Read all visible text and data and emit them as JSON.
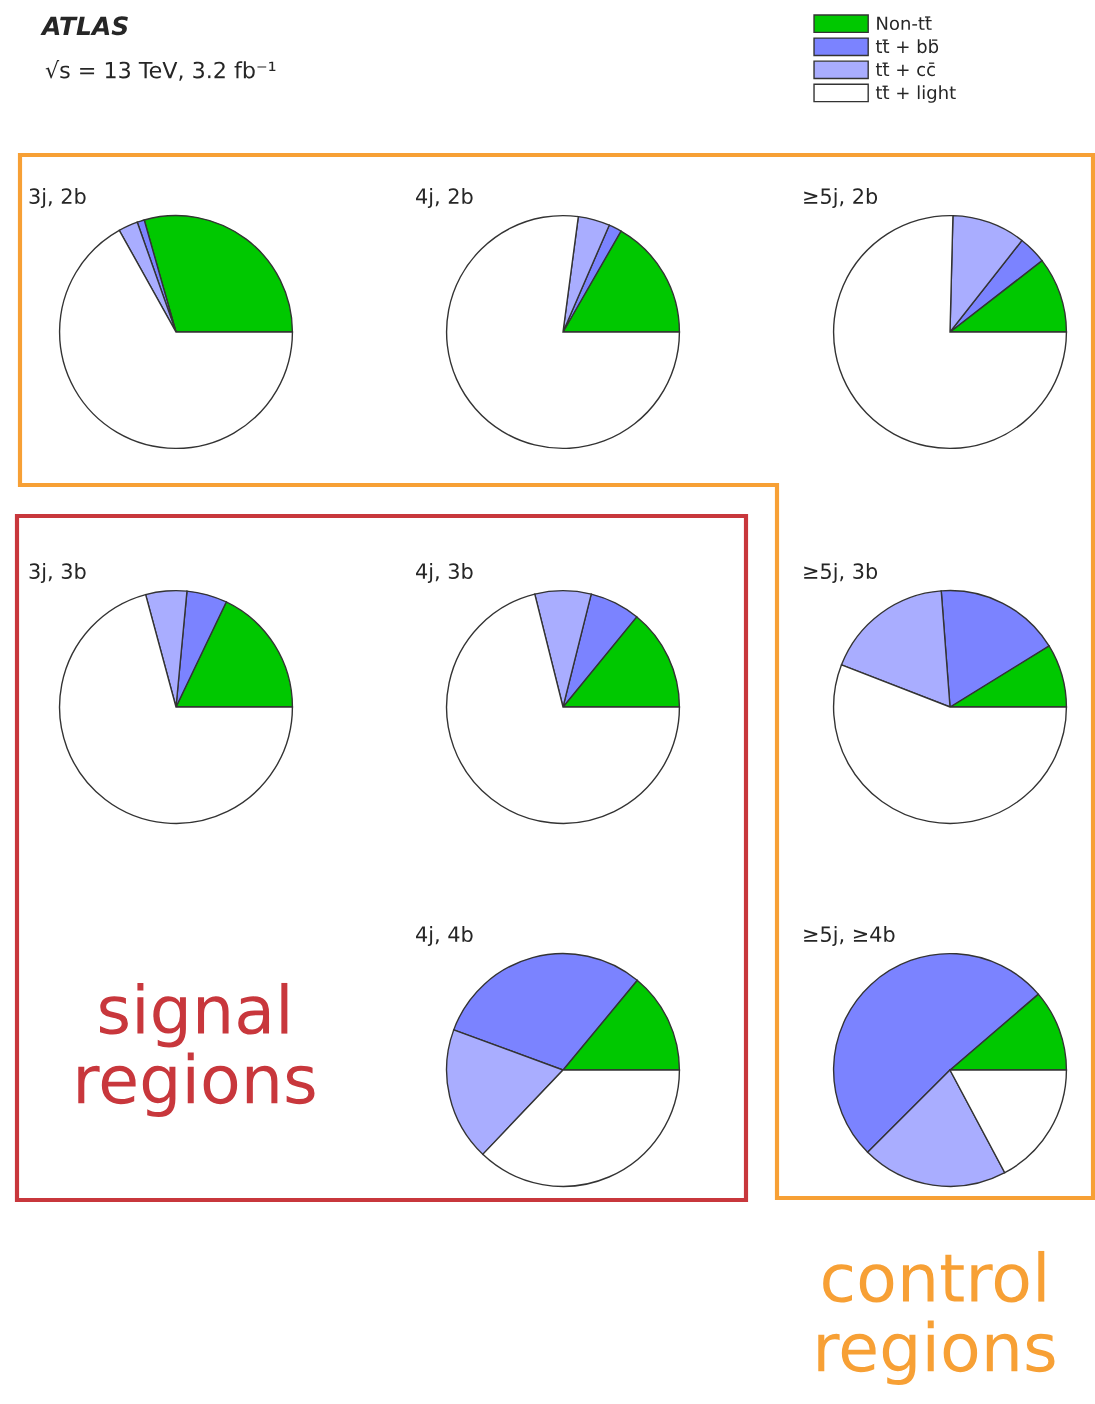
{
  "chart_data": [
    {
      "type": "pie",
      "title": "3j, 2b",
      "categories": [
        "Non-tt̄",
        "tt̄ + bb̄",
        "tt̄ + cc̄",
        "tt̄ + light"
      ],
      "values": [
        29.4,
        1.0,
        2.7,
        66.9
      ],
      "colors": [
        "#00c800",
        "#7b83ff",
        "#a9adff",
        "#ffffff"
      ],
      "legend": "top right"
    },
    {
      "type": "pie",
      "title": "4j, 2b",
      "values": [
        16.7,
        1.8,
        4.4,
        77.1
      ],
      "colors": [
        "#00c800",
        "#7b83ff",
        "#a9adff",
        "#ffffff"
      ]
    },
    {
      "type": "pie",
      "title": "≥5j, 2b",
      "values": [
        10.5,
        3.9,
        10.2,
        75.4
      ],
      "colors": [
        "#00c800",
        "#7b83ff",
        "#a9adff",
        "#ffffff"
      ]
    },
    {
      "type": "pie",
      "title": "3j, 3b",
      "values": [
        17.9,
        5.6,
        5.7,
        70.8
      ],
      "colors": [
        "#00c800",
        "#7b83ff",
        "#a9adff",
        "#ffffff"
      ]
    },
    {
      "type": "pie",
      "title": "4j, 3b",
      "values": [
        14.1,
        7.0,
        7.8,
        71.1
      ],
      "colors": [
        "#00c800",
        "#7b83ff",
        "#a9adff",
        "#ffffff"
      ]
    },
    {
      "type": "pie",
      "title": "≥5j, 3b",
      "values": [
        8.8,
        17.4,
        17.9,
        55.9
      ],
      "colors": [
        "#00c800",
        "#7b83ff",
        "#a9adff",
        "#ffffff"
      ]
    },
    {
      "type": "pie",
      "title": "4j, 4b",
      "values": [
        14.0,
        30.4,
        18.5,
        37.1
      ],
      "colors": [
        "#00c800",
        "#7b83ff",
        "#a9adff",
        "#ffffff"
      ]
    },
    {
      "type": "pie",
      "title": "≥5j, ≥4b",
      "values": [
        11.3,
        51.2,
        20.3,
        17.2
      ],
      "colors": [
        "#00c800",
        "#7b83ff",
        "#a9adff",
        "#ffffff"
      ]
    },
    {
      "type": "other",
      "title": "ATLAS",
      "subtitle": "√s = 13 TeV, 3.2 fb⁻¹",
      "annotations": [
        "signal regions",
        "control regions"
      ]
    }
  ]
}
